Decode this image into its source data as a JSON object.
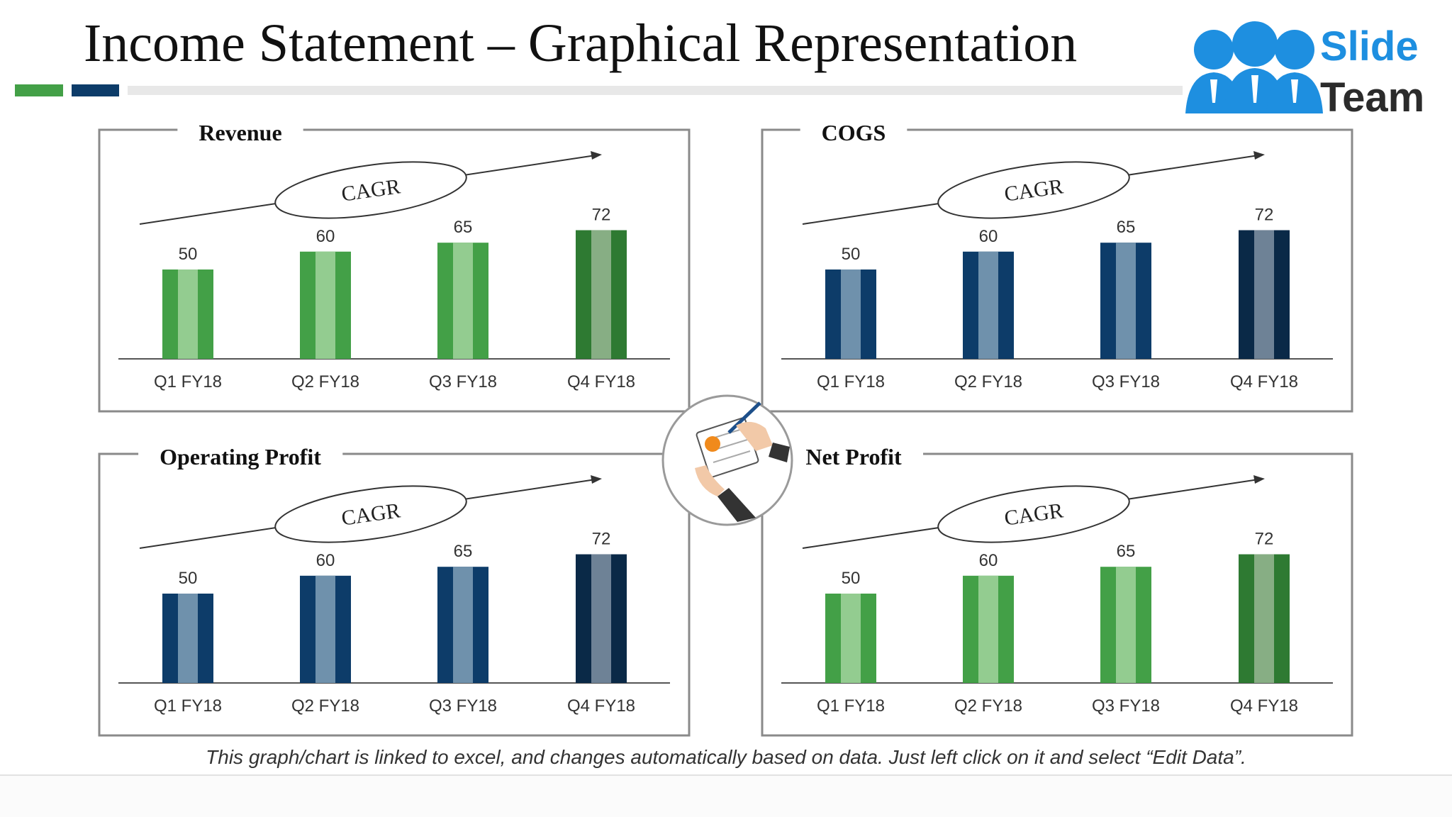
{
  "title": "Income Statement – Graphical Representation",
  "logo": {
    "line1": "Slide",
    "line2": "Team"
  },
  "footnote": "This graph/chart is linked to excel, and changes automatically based on data. Just left click on it and select “Edit Data”.",
  "chart_data": [
    {
      "type": "bar",
      "title": "Revenue",
      "annotation": "CAGR",
      "categories": [
        "Q1 FY18",
        "Q2 FY18",
        "Q3 FY18",
        "Q4 FY18"
      ],
      "values": [
        50,
        60,
        65,
        72
      ],
      "colors": [
        "#43a047",
        "#43a047",
        "#43a047",
        "#2e7a32"
      ],
      "stripe_colors": [
        "#93cc90",
        "#93cc90",
        "#93cc90",
        "#87ae84"
      ]
    },
    {
      "type": "bar",
      "title": "COGS",
      "annotation": "CAGR",
      "categories": [
        "Q1 FY18",
        "Q2 FY18",
        "Q3 FY18",
        "Q4 FY18"
      ],
      "values": [
        50,
        60,
        65,
        72
      ],
      "colors": [
        "#0d3c69",
        "#0d3c69",
        "#0d3c69",
        "#0a2947"
      ],
      "stripe_colors": [
        "#6f91ac",
        "#6f91ac",
        "#6f91ac",
        "#6e8296"
      ]
    },
    {
      "type": "bar",
      "title": "Operating Profit",
      "annotation": "CAGR",
      "categories": [
        "Q1 FY18",
        "Q2 FY18",
        "Q3 FY18",
        "Q4 FY18"
      ],
      "values": [
        50,
        60,
        65,
        72
      ],
      "colors": [
        "#0d3c69",
        "#0d3c69",
        "#0d3c69",
        "#0a2947"
      ],
      "stripe_colors": [
        "#6f91ac",
        "#6f91ac",
        "#6f91ac",
        "#6e8296"
      ]
    },
    {
      "type": "bar",
      "title": "Net Profit",
      "annotation": "CAGR",
      "categories": [
        "Q1 FY18",
        "Q2 FY18",
        "Q3 FY18",
        "Q4 FY18"
      ],
      "values": [
        50,
        60,
        65,
        72
      ],
      "colors": [
        "#43a047",
        "#43a047",
        "#43a047",
        "#2e7a32"
      ],
      "stripe_colors": [
        "#93cc90",
        "#93cc90",
        "#93cc90",
        "#87ae84"
      ]
    }
  ]
}
